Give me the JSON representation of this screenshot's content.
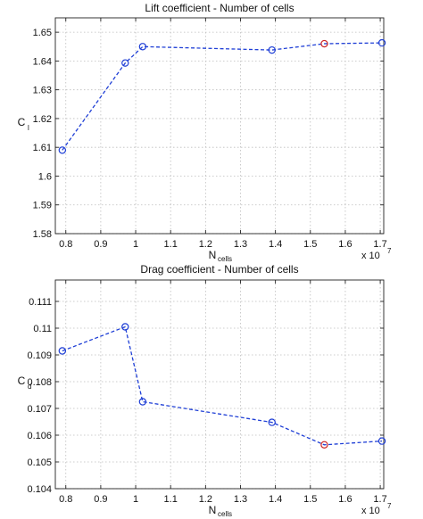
{
  "chart_data": [
    {
      "type": "line",
      "title": "Lift coefficient - Number of cells",
      "ylabel": "C",
      "ylabel_sub": "l",
      "xlabel": "N",
      "xlabel_sub": "cells",
      "x_multiplier": "x 10",
      "x_multiplier_exp": "7",
      "xlim": [
        0.77,
        1.71
      ],
      "ylim": [
        1.58,
        1.655
      ],
      "xticks": [
        "0.8",
        "0.9",
        "1",
        "1.1",
        "1.2",
        "1.3",
        "1.4",
        "1.5",
        "1.6",
        "1.7"
      ],
      "yticks": [
        "1.58",
        "1.59",
        "1.6",
        "1.61",
        "1.62",
        "1.63",
        "1.64",
        "1.65"
      ],
      "grid": true,
      "series_color": "#1f3fd6",
      "highlight_color": "#cc2222",
      "highlight_index": 4,
      "x": [
        0.79,
        0.97,
        1.02,
        1.39,
        1.54,
        1.705
      ],
      "y": [
        1.609,
        1.6393,
        1.645,
        1.6438,
        1.646,
        1.6463
      ]
    },
    {
      "type": "line",
      "title": "Drag coefficient - Number of cells",
      "ylabel": "C",
      "ylabel_sub": "d",
      "xlabel": "N",
      "xlabel_sub": "cells",
      "x_multiplier": "x 10",
      "x_multiplier_exp": "7",
      "xlim": [
        0.77,
        1.71
      ],
      "ylim": [
        0.104,
        0.1118
      ],
      "xticks": [
        "0.8",
        "0.9",
        "1",
        "1.1",
        "1.2",
        "1.3",
        "1.4",
        "1.5",
        "1.6",
        "1.7"
      ],
      "yticks": [
        "0.104",
        "0.105",
        "0.106",
        "0.107",
        "0.108",
        "0.109",
        "0.11",
        "0.111"
      ],
      "grid": true,
      "series_color": "#1f3fd6",
      "highlight_color": "#cc2222",
      "highlight_index": 4,
      "x": [
        0.79,
        0.97,
        1.02,
        1.39,
        1.54,
        1.705
      ],
      "y": [
        0.10915,
        0.11005,
        0.10725,
        0.10648,
        0.10564,
        0.10578
      ]
    }
  ]
}
